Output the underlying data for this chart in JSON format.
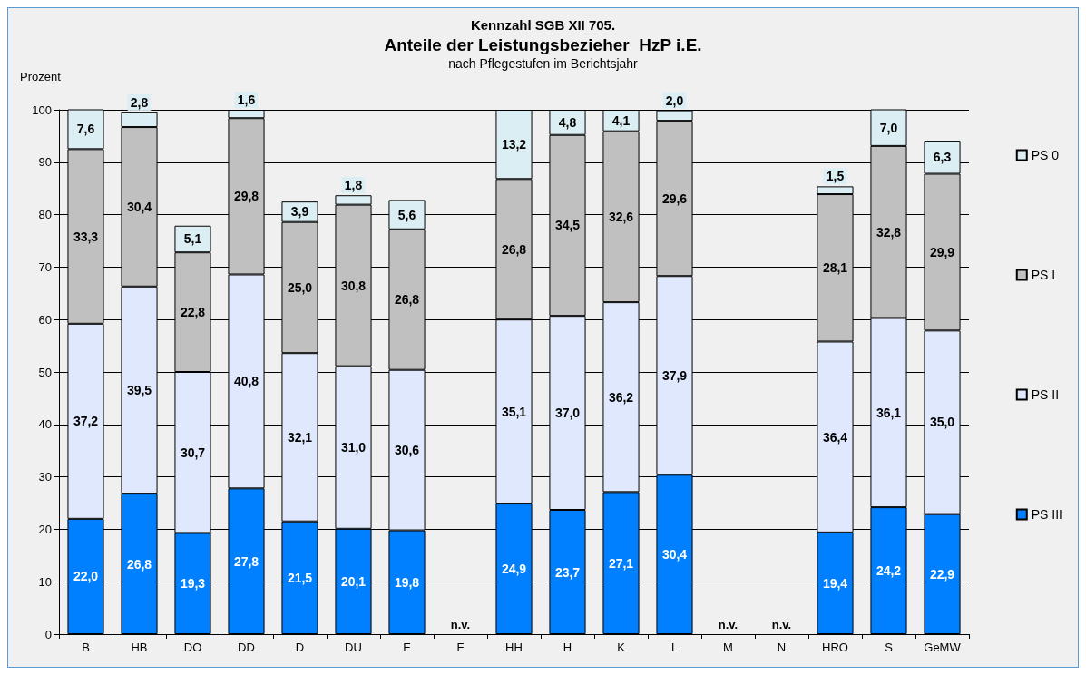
{
  "chart_data": {
    "type": "bar",
    "stacked": true,
    "title": "Anteile der Leistungsbezieher  HzP i.E.",
    "subtitle": "nach Pflegestufen im Berichtsjahr",
    "annotations": [
      "Kennzahl SGB XII 705.",
      "n.v.",
      "n.v.",
      "n.v."
    ],
    "ylabel": "Prozent",
    "categories": [
      "B",
      "HB",
      "DO",
      "DD",
      "D",
      "DU",
      "E",
      "F",
      "HH",
      "H",
      "K",
      "L",
      "M",
      "N",
      "HRO",
      "S",
      "GeMW"
    ],
    "series": [
      {
        "name": "PS III",
        "color": "#0080ff",
        "values": [
          22.0,
          26.8,
          19.3,
          27.8,
          21.5,
          20.1,
          19.8,
          null,
          24.9,
          23.7,
          27.1,
          30.4,
          null,
          null,
          19.4,
          24.2,
          22.9
        ],
        "value_labels": [
          "22,0",
          "26,8",
          "19,3",
          "27,8",
          "21,5",
          "20,1",
          "19,8",
          null,
          "24,9",
          "23,7",
          "27,1",
          "30,4",
          null,
          null,
          "19,4",
          "24,2",
          "22,9"
        ]
      },
      {
        "name": "PS II",
        "color": "#dfe8fc",
        "values": [
          37.2,
          39.5,
          30.7,
          40.8,
          32.1,
          31.0,
          30.6,
          null,
          35.1,
          37.0,
          36.2,
          37.9,
          null,
          null,
          36.4,
          36.1,
          35.0
        ],
        "value_labels": [
          "37,2",
          "39,5",
          "30,7",
          "40,8",
          "32,1",
          "31,0",
          "30,6",
          null,
          "35,1",
          "37,0",
          "36,2",
          "37,9",
          null,
          null,
          "36,4",
          "36,1",
          "35,0"
        ]
      },
      {
        "name": "PS I",
        "color": "#c0c0c0",
        "values": [
          33.3,
          30.4,
          22.8,
          29.8,
          25.0,
          30.8,
          26.8,
          null,
          26.8,
          34.5,
          32.6,
          29.6,
          null,
          null,
          28.1,
          32.8,
          29.9
        ],
        "value_labels": [
          "33,3",
          "30,4",
          "22,8",
          "29,8",
          "25,0",
          "30,8",
          "26,8",
          null,
          "26,8",
          "34,5",
          "32,6",
          "29,6",
          null,
          null,
          "28,1",
          "32,8",
          "29,9"
        ]
      },
      {
        "name": "PS 0",
        "color": "#dbeef4",
        "values": [
          7.6,
          2.8,
          5.1,
          1.6,
          3.9,
          1.8,
          5.6,
          null,
          13.2,
          4.8,
          4.1,
          2.0,
          null,
          null,
          1.5,
          7.0,
          6.3
        ],
        "value_labels": [
          "7,6",
          "2,8",
          "5,1",
          "1,6",
          "3,9",
          "1,8",
          "5,6",
          null,
          "13,2",
          "4,8",
          "4,1",
          "2,0",
          null,
          null,
          "1,5",
          "7,0",
          "6,3"
        ]
      }
    ],
    "ylim": [
      0,
      100
    ],
    "yticks": [
      0,
      10,
      20,
      30,
      40,
      50,
      60,
      70,
      80,
      90,
      100
    ],
    "grid": "y",
    "legend": "right"
  }
}
